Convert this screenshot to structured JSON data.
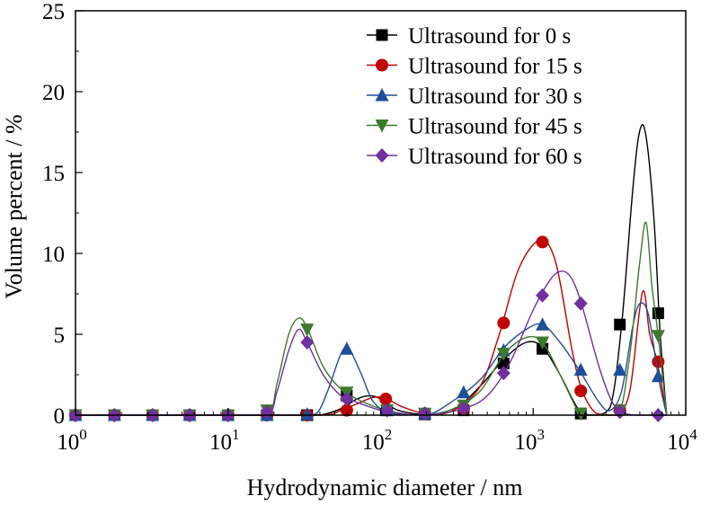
{
  "chart_data": {
    "type": "line",
    "xlabel": "Hydrodynamic diameter / nm",
    "ylabel": "Volume percent / %",
    "xscale": "log",
    "xlim": [
      1,
      10000
    ],
    "ylim": [
      0,
      25
    ],
    "xticks": [
      {
        "value": 1,
        "base": "10",
        "exp": "0"
      },
      {
        "value": 10,
        "base": "10",
        "exp": "1"
      },
      {
        "value": 100,
        "base": "10",
        "exp": "2"
      },
      {
        "value": 1000,
        "base": "10",
        "exp": "3"
      },
      {
        "value": 10000,
        "base": "10",
        "exp": "4"
      }
    ],
    "yticks": [
      0,
      5,
      10,
      15,
      20,
      25
    ],
    "legend_position": "top-right",
    "series": [
      {
        "name": "Ultrasound for 0 s",
        "color": "#000000",
        "marker": "square",
        "curve": [
          [
            1,
            0
          ],
          [
            10,
            0
          ],
          [
            30,
            0
          ],
          [
            40,
            0
          ],
          [
            55,
            0.4
          ],
          [
            70,
            1.0
          ],
          [
            85,
            1.2
          ],
          [
            100,
            1.0
          ],
          [
            130,
            0.3
          ],
          [
            200,
            0.05
          ],
          [
            300,
            0.3
          ],
          [
            450,
            1.8
          ],
          [
            650,
            3.5
          ],
          [
            900,
            4.5
          ],
          [
            1150,
            4.2
          ],
          [
            1500,
            2.5
          ],
          [
            2000,
            0.3
          ],
          [
            2500,
            0
          ],
          [
            3200,
            0.5
          ],
          [
            3800,
            5.6
          ],
          [
            4500,
            14
          ],
          [
            5000,
            17.6
          ],
          [
            5500,
            17.2
          ],
          [
            6200,
            12
          ],
          [
            6800,
            5
          ],
          [
            7500,
            0
          ]
        ],
        "markers": [
          [
            1,
            0
          ],
          [
            1.8,
            0
          ],
          [
            3.2,
            0
          ],
          [
            5.6,
            0
          ],
          [
            10,
            0
          ],
          [
            18,
            0
          ],
          [
            33,
            0
          ],
          [
            60,
            1.2
          ],
          [
            110,
            0.3
          ],
          [
            195,
            0.05
          ],
          [
            350,
            0.3
          ],
          [
            640,
            3.2
          ],
          [
            1150,
            4.1
          ],
          [
            2050,
            0.1
          ],
          [
            3700,
            5.6
          ],
          [
            6600,
            6.3
          ]
        ]
      },
      {
        "name": "Ultrasound for 15 s",
        "color": "#c00000",
        "marker": "circle",
        "curve": [
          [
            1,
            0
          ],
          [
            10,
            0
          ],
          [
            40,
            0
          ],
          [
            55,
            0.3
          ],
          [
            70,
            0.7
          ],
          [
            90,
            1.1
          ],
          [
            110,
            1.0
          ],
          [
            140,
            0.5
          ],
          [
            200,
            0.1
          ],
          [
            300,
            0.3
          ],
          [
            450,
            1.8
          ],
          [
            600,
            5.0
          ],
          [
            800,
            9.0
          ],
          [
            1100,
            10.8
          ],
          [
            1400,
            9.5
          ],
          [
            1800,
            4
          ],
          [
            2100,
            1.5
          ],
          [
            2600,
            0.1
          ],
          [
            3500,
            0
          ],
          [
            4300,
            1.5
          ],
          [
            5200,
            7.6
          ],
          [
            5800,
            5
          ],
          [
            6500,
            3.3
          ],
          [
            7500,
            0
          ]
        ],
        "markers": [
          [
            1,
            0
          ],
          [
            1.8,
            0
          ],
          [
            3.2,
            0
          ],
          [
            5.6,
            0
          ],
          [
            10,
            0
          ],
          [
            18,
            0
          ],
          [
            33,
            0
          ],
          [
            60,
            0.3
          ],
          [
            108,
            1.0
          ],
          [
            195,
            0.1
          ],
          [
            350,
            0.4
          ],
          [
            640,
            5.7
          ],
          [
            1150,
            10.7
          ],
          [
            2050,
            1.5
          ],
          [
            3700,
            0.3
          ],
          [
            6600,
            3.3
          ]
        ]
      },
      {
        "name": "Ultrasound for 30 s",
        "color": "#1f4e9a",
        "marker": "triangle-up",
        "curve": [
          [
            1,
            0
          ],
          [
            10,
            0
          ],
          [
            30,
            0
          ],
          [
            38,
            0.1
          ],
          [
            45,
            1.5
          ],
          [
            55,
            3.8
          ],
          [
            62,
            4.1
          ],
          [
            75,
            2.5
          ],
          [
            90,
            0.8
          ],
          [
            120,
            0.1
          ],
          [
            200,
            0
          ],
          [
            300,
            0.9
          ],
          [
            450,
            2.2
          ],
          [
            650,
            4.2
          ],
          [
            900,
            5.3
          ],
          [
            1150,
            5.6
          ],
          [
            1500,
            4.5
          ],
          [
            2000,
            2.8
          ],
          [
            2700,
            0.8
          ],
          [
            3200,
            0.3
          ],
          [
            3800,
            1.5
          ],
          [
            4500,
            5.5
          ],
          [
            5000,
            6.9
          ],
          [
            5700,
            6.2
          ],
          [
            6600,
            2.4
          ],
          [
            7500,
            0
          ]
        ],
        "markers": [
          [
            1,
            0
          ],
          [
            1.8,
            0
          ],
          [
            3.2,
            0
          ],
          [
            5.6,
            0
          ],
          [
            10,
            0
          ],
          [
            18,
            0
          ],
          [
            33,
            0.05
          ],
          [
            60,
            4.1
          ],
          [
            110,
            0.3
          ],
          [
            195,
            0.1
          ],
          [
            350,
            1.4
          ],
          [
            640,
            4.0
          ],
          [
            1150,
            5.6
          ],
          [
            2050,
            2.8
          ],
          [
            3700,
            2.8
          ],
          [
            6600,
            2.4
          ]
        ]
      },
      {
        "name": "Ultrasound for 45 s",
        "color": "#3d7a2e",
        "marker": "triangle-down",
        "curve": [
          [
            1,
            0
          ],
          [
            10,
            0
          ],
          [
            18,
            0
          ],
          [
            21,
            2
          ],
          [
            25,
            5
          ],
          [
            29,
            6.0
          ],
          [
            33,
            5.4
          ],
          [
            42,
            3
          ],
          [
            55,
            1.6
          ],
          [
            70,
            1.0
          ],
          [
            100,
            0.4
          ],
          [
            150,
            0.05
          ],
          [
            200,
            0
          ],
          [
            300,
            0.4
          ],
          [
            450,
            1.5
          ],
          [
            650,
            3.8
          ],
          [
            900,
            4.8
          ],
          [
            1150,
            4.5
          ],
          [
            1500,
            2.5
          ],
          [
            1900,
            0.5
          ],
          [
            2100,
            0
          ],
          [
            3500,
            0
          ],
          [
            4200,
            3
          ],
          [
            5000,
            9.5
          ],
          [
            5500,
            11.9
          ],
          [
            6000,
            8
          ],
          [
            6600,
            4.9
          ],
          [
            7500,
            0
          ]
        ],
        "markers": [
          [
            1,
            0
          ],
          [
            1.8,
            0
          ],
          [
            3.2,
            0
          ],
          [
            5.6,
            0
          ],
          [
            10,
            0
          ],
          [
            18,
            0.3
          ],
          [
            33,
            5.3
          ],
          [
            60,
            1.4
          ],
          [
            110,
            0.3
          ],
          [
            195,
            0.1
          ],
          [
            350,
            0.6
          ],
          [
            640,
            3.8
          ],
          [
            1150,
            4.5
          ],
          [
            2050,
            0.1
          ],
          [
            3700,
            0.3
          ],
          [
            6600,
            4.9
          ]
        ]
      },
      {
        "name": "Ultrasound for 60 s",
        "color": "#7030a0",
        "marker": "diamond",
        "curve": [
          [
            1,
            0
          ],
          [
            10,
            0
          ],
          [
            18,
            0
          ],
          [
            21,
            1.5
          ],
          [
            25,
            4
          ],
          [
            29,
            5.3
          ],
          [
            33,
            4.5
          ],
          [
            42,
            2.5
          ],
          [
            55,
            1.2
          ],
          [
            70,
            0.8
          ],
          [
            100,
            0.3
          ],
          [
            150,
            0.05
          ],
          [
            200,
            0
          ],
          [
            350,
            0.4
          ],
          [
            500,
            1.2
          ],
          [
            700,
            3.2
          ],
          [
            1000,
            6.5
          ],
          [
            1300,
            8.4
          ],
          [
            1550,
            8.9
          ],
          [
            1800,
            8.4
          ],
          [
            2100,
            6.7
          ],
          [
            2700,
            3
          ],
          [
            3300,
            0.8
          ],
          [
            4000,
            0.1
          ],
          [
            5000,
            0
          ],
          [
            7500,
            0
          ]
        ],
        "markers": [
          [
            1,
            0
          ],
          [
            1.8,
            0
          ],
          [
            3.2,
            0
          ],
          [
            5.6,
            0
          ],
          [
            10,
            0
          ],
          [
            18,
            0.2
          ],
          [
            33,
            4.5
          ],
          [
            60,
            1.0
          ],
          [
            110,
            0.3
          ],
          [
            195,
            0.1
          ],
          [
            350,
            0.4
          ],
          [
            640,
            2.6
          ],
          [
            1150,
            7.4
          ],
          [
            2050,
            6.9
          ],
          [
            3700,
            0.2
          ],
          [
            6600,
            0
          ]
        ]
      }
    ]
  }
}
